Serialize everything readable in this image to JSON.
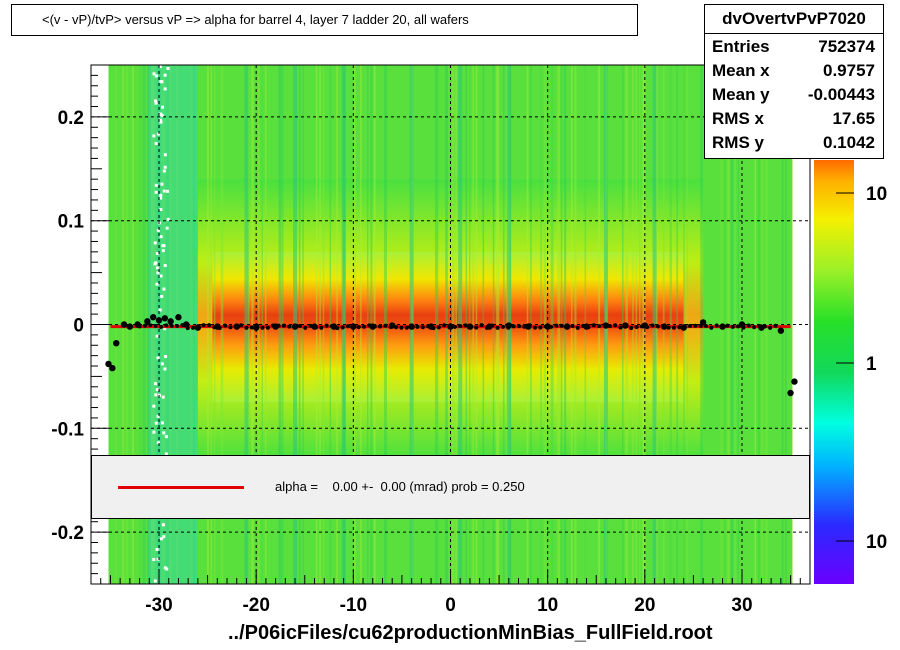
{
  "title": "<(v - vP)/tvP>  versus   vP => alpha for barrel 4, layer 7 ladder 20, all wafers",
  "stats": {
    "name": "dvOvertvPvP7020",
    "rows": [
      {
        "key": "Entries",
        "value": "752374"
      },
      {
        "key": "Mean x",
        "value": "0.9757"
      },
      {
        "key": "Mean y",
        "value": "-0.00443"
      },
      {
        "key": "RMS x",
        "value": "17.65"
      },
      {
        "key": "RMS y",
        "value": "0.1042"
      }
    ]
  },
  "legend": {
    "text": "alpha =    0.00 +-  0.00 (mrad) prob = 0.250"
  },
  "xlabel": "../P06icFiles/cu62productionMinBias_FullField.root",
  "colors": {
    "fit_line": "#e00000",
    "markers": "#000000"
  },
  "chart_data": {
    "type": "heatmap",
    "xlim": [
      -37,
      37
    ],
    "ylim": [
      -0.25,
      0.25
    ],
    "x_ticks": [
      -30,
      -20,
      -10,
      0,
      10,
      20,
      30
    ],
    "x_tick_labels": [
      "-30",
      "-20",
      "-10",
      "0",
      "10",
      "20",
      "30"
    ],
    "y_ticks": [
      -0.2,
      -0.1,
      0,
      0.1,
      0.2
    ],
    "y_tick_labels": [
      "-0.2",
      "-0.1",
      "0",
      "0.1",
      "0.2"
    ],
    "grid": true,
    "colorbar_labels": [
      "10",
      "1",
      "10"
    ],
    "fit": {
      "y": -0.002,
      "x_range": [
        -35,
        35
      ]
    },
    "profile_points": [
      [
        -35.2,
        -0.038
      ],
      [
        -34.8,
        -0.042
      ],
      [
        -34.4,
        -0.018
      ],
      [
        -33.6,
        0.0
      ],
      [
        -33.0,
        -0.002
      ],
      [
        -32.2,
        0.0
      ],
      [
        -31.2,
        0.003
      ],
      [
        -30.6,
        0.007
      ],
      [
        -30.0,
        0.004
      ],
      [
        -29.4,
        0.006
      ],
      [
        -28.8,
        0.003
      ],
      [
        -28.0,
        0.007
      ],
      [
        -27.2,
        0.0
      ],
      [
        -26.0,
        -0.003
      ],
      [
        -24.0,
        -0.002
      ],
      [
        -22.0,
        -0.002
      ],
      [
        -20.0,
        -0.003
      ],
      [
        -18.0,
        -0.002
      ],
      [
        -16.0,
        -0.002
      ],
      [
        -14.0,
        -0.002
      ],
      [
        -12.0,
        -0.002
      ],
      [
        -10.0,
        -0.002
      ],
      [
        -8.0,
        -0.002
      ],
      [
        -6.0,
        -0.001
      ],
      [
        -4.0,
        -0.002
      ],
      [
        -2.0,
        -0.002
      ],
      [
        0.0,
        -0.002
      ],
      [
        2.0,
        -0.002
      ],
      [
        4.0,
        -0.002
      ],
      [
        6.0,
        -0.001
      ],
      [
        8.0,
        -0.002
      ],
      [
        10.0,
        -0.002
      ],
      [
        12.0,
        -0.002
      ],
      [
        14.0,
        -0.002
      ],
      [
        16.0,
        -0.001
      ],
      [
        18.0,
        -0.001
      ],
      [
        20.0,
        -0.001
      ],
      [
        22.0,
        -0.002
      ],
      [
        24.0,
        -0.003
      ],
      [
        26.0,
        0.002
      ],
      [
        28.0,
        -0.002
      ],
      [
        30.0,
        0.0
      ],
      [
        32.0,
        -0.003
      ],
      [
        34.0,
        -0.006
      ],
      [
        35.0,
        -0.066
      ],
      [
        35.4,
        -0.055
      ]
    ]
  }
}
